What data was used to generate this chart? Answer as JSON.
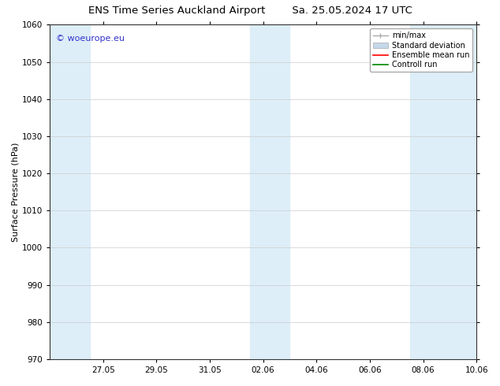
{
  "title_left": "ENS Time Series Auckland Airport",
  "title_right": "Sa. 25.05.2024 17 UTC",
  "ylabel": "Surface Pressure (hPa)",
  "ylim": [
    970,
    1060
  ],
  "yticks": [
    970,
    980,
    990,
    1000,
    1010,
    1020,
    1030,
    1040,
    1050,
    1060
  ],
  "xlim": [
    0,
    16
  ],
  "xtick_labels": [
    "27.05",
    "29.05",
    "31.05",
    "02.06",
    "04.06",
    "06.06",
    "08.06",
    "10.06"
  ],
  "xtick_positions": [
    2,
    4,
    6,
    8,
    10,
    12,
    14,
    16
  ],
  "shaded_bands": [
    {
      "x_start": 0.0,
      "x_end": 1.5
    },
    {
      "x_start": 7.5,
      "x_end": 9.0
    },
    {
      "x_start": 13.5,
      "x_end": 16.0
    }
  ],
  "band_color": "#ddeef8",
  "watermark_text": "© woeurope.eu",
  "watermark_color": "#3333cc",
  "bg_color": "#ffffff",
  "plot_bg_color": "#ffffff",
  "grid_color": "#cccccc",
  "legend_labels": [
    "min/max",
    "Standard deviation",
    "Ensemble mean run",
    "Controll run"
  ],
  "legend_colors_line": [
    "#aaaaaa",
    "#c5d8ea",
    "#ff0000",
    "#008800"
  ],
  "title_fontsize": 9.5,
  "axis_label_fontsize": 8,
  "tick_fontsize": 7.5,
  "legend_fontsize": 7,
  "watermark_fontsize": 8
}
